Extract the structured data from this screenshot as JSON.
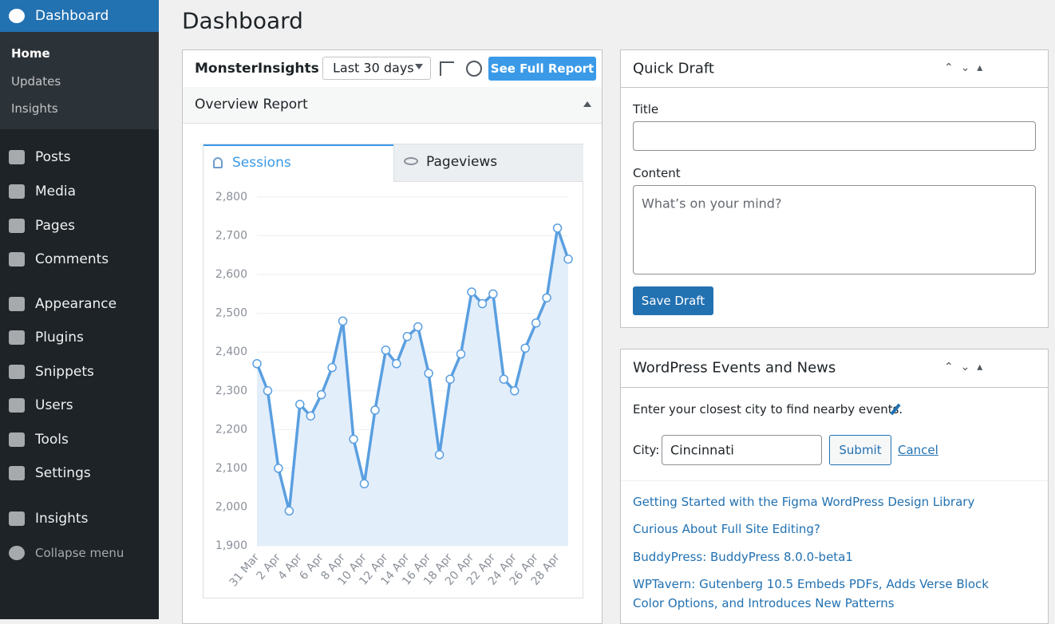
{
  "sidebar": {
    "active": "Dashboard",
    "submenu": [
      "Home",
      "Updates",
      "Insights"
    ],
    "menu": [
      "Posts",
      "Media",
      "Pages",
      "Comments",
      "Appearance",
      "Plugins",
      "Snippets",
      "Users",
      "Tools",
      "Settings",
      "Insights"
    ],
    "collapse": "Collapse menu"
  },
  "header": {
    "title": "Dashboard"
  },
  "monsterinsights": {
    "title": "MonsterInsights",
    "range": "Last 30 days",
    "button": "See Full Report",
    "section": "Overview Report",
    "tabs": [
      "Sessions",
      "Pageviews"
    ]
  },
  "quick_draft": {
    "title": "Quick Draft",
    "title_label": "Title",
    "content_label": "Content",
    "placeholder": "What’s on your mind?",
    "button": "Save Draft"
  },
  "events": {
    "title": "WordPress Events and News",
    "intro": "Enter your closest city to find nearby events.",
    "city_label": "City:",
    "city_value": "Cincinnati",
    "submit": "Submit",
    "cancel": "Cancel",
    "news": [
      "Getting Started with the Figma WordPress Design Library",
      "Curious About Full Site Editing?",
      "BuddyPress: BuddyPress 8.0.0-beta1",
      "WPTavern: Gutenberg 10.5 Embeds PDFs, Adds Verse Block Color Options, and Introduces New Patterns"
    ]
  },
  "chart_data": {
    "type": "area",
    "categories": [
      "31 Mar",
      null,
      "2 Apr",
      null,
      "4 Apr",
      null,
      "6 Apr",
      null,
      "8 Apr",
      null,
      "10 Apr",
      null,
      "12 Apr",
      null,
      "14 Apr",
      null,
      "16 Apr",
      null,
      "18 Apr",
      null,
      "20 Apr",
      null,
      "22 Apr",
      null,
      "24 Apr",
      null,
      "26 Apr",
      null,
      "28 Apr",
      null
    ],
    "values": [
      2370,
      2300,
      2100,
      1990,
      2265,
      2235,
      2290,
      2360,
      2480,
      2175,
      2060,
      2250,
      2405,
      2370,
      2440,
      2465,
      2345,
      2135,
      2330,
      2395,
      2555,
      2525,
      2550,
      2330,
      2300,
      2410,
      2475,
      2540,
      2720,
      2640
    ],
    "color": "#5a9fe0",
    "ylim": [
      1900,
      2800
    ],
    "yticks": [
      {
        "value": 1900,
        "label": "1,900"
      },
      {
        "value": 2000,
        "label": "2,000"
      },
      {
        "value": 2100,
        "label": "2,100"
      },
      {
        "value": 2200,
        "label": "2,200"
      },
      {
        "value": 2300,
        "label": "2,300"
      },
      {
        "value": 2400,
        "label": "2,400"
      },
      {
        "value": 2500,
        "label": "2,500"
      },
      {
        "value": 2600,
        "label": "2,600"
      },
      {
        "value": 2700,
        "label": "2,700"
      },
      {
        "value": 2800,
        "label": "2,800"
      }
    ],
    "grid": true
  }
}
